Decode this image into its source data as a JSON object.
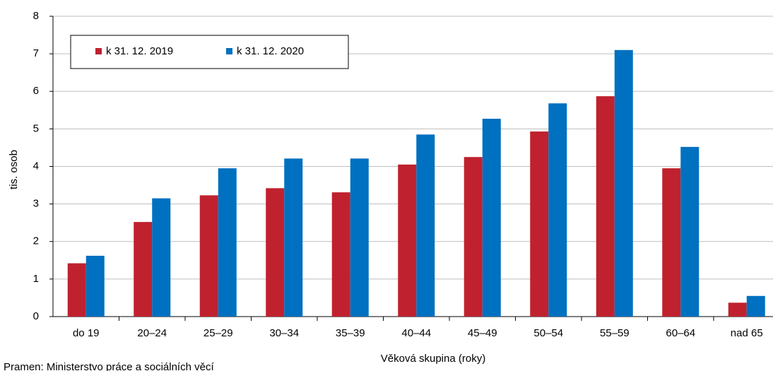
{
  "chart_data": {
    "type": "bar",
    "x_label": "Věková skupina (roky)",
    "y_label": "tis. osob",
    "source": "Pramen: Ministerstvo práce a sociálních věcí",
    "categories": [
      "do 19",
      "20–24",
      "25–29",
      "30–34",
      "35–39",
      "40–44",
      "45–49",
      "50–54",
      "55–59",
      "60–64",
      "nad 65"
    ],
    "series": [
      {
        "name": "k 31. 12. 2019",
        "color": "#c0212e",
        "values": [
          1.42,
          2.52,
          3.23,
          3.42,
          3.31,
          4.05,
          4.25,
          4.93,
          5.87,
          3.95,
          0.37
        ]
      },
      {
        "name": "k 31. 12. 2020",
        "color": "#0070c0",
        "values": [
          1.62,
          3.15,
          3.95,
          4.21,
          4.21,
          4.85,
          5.27,
          5.68,
          7.1,
          4.52,
          0.55
        ]
      }
    ],
    "ylim": [
      0,
      8
    ],
    "yticks": [
      0,
      1,
      2,
      3,
      4,
      5,
      6,
      7,
      8
    ],
    "grid": true,
    "legend": "top-left"
  }
}
